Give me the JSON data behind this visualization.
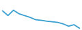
{
  "x": [
    0,
    1,
    2,
    3,
    4,
    5,
    6,
    7,
    8,
    9,
    10,
    11,
    12,
    13,
    14
  ],
  "y": [
    14800,
    13200,
    15000,
    13800,
    13200,
    12600,
    11800,
    11600,
    11300,
    11100,
    10900,
    10400,
    9600,
    10100,
    8900
  ],
  "line_color": "#3a9fd1",
  "linewidth": 1.3,
  "background_color": "#ffffff"
}
